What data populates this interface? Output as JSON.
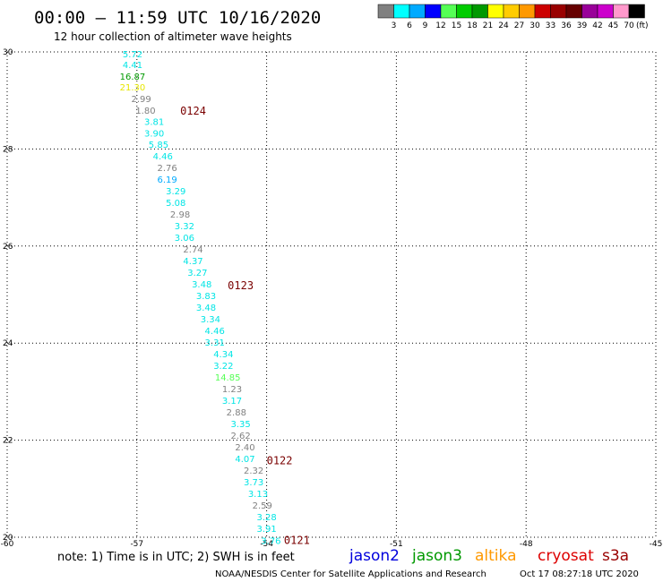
{
  "header": {
    "title": "00:00 – 11:59 UTC 10/16/2020",
    "subtitle": "12 hour collection of altimeter wave heights"
  },
  "colorbar": {
    "unit": "(ft)",
    "swatches": [
      {
        "color": "#808080",
        "label": "3"
      },
      {
        "color": "#00ffff",
        "label": "6"
      },
      {
        "color": "#00aaff",
        "label": "9"
      },
      {
        "color": "#0000ff",
        "label": "12"
      },
      {
        "color": "#55ff55",
        "label": "15"
      },
      {
        "color": "#00cc00",
        "label": "18"
      },
      {
        "color": "#009900",
        "label": "21"
      },
      {
        "color": "#ffff00",
        "label": "24"
      },
      {
        "color": "#ffcc00",
        "label": "27"
      },
      {
        "color": "#ff9900",
        "label": "30"
      },
      {
        "color": "#cc0000",
        "label": "33"
      },
      {
        "color": "#990000",
        "label": "36"
      },
      {
        "color": "#660000",
        "label": "39"
      },
      {
        "color": "#990099",
        "label": "42"
      },
      {
        "color": "#cc00cc",
        "label": "45"
      },
      {
        "color": "#ff99cc",
        "label": "70"
      },
      {
        "color": "#000000",
        "label": ""
      }
    ]
  },
  "chart_data": {
    "type": "scatter",
    "title": "00:00 – 11:59 UTC 10/16/2020",
    "subtitle": "12 hour collection of altimeter wave heights",
    "xlim": [
      -60,
      -45
    ],
    "ylim": [
      20,
      30
    ],
    "x_ticks": [
      "-60",
      "-57",
      "-54",
      "-51",
      "-48",
      "-45"
    ],
    "y_ticks": [
      "20",
      "22",
      "24",
      "26",
      "28",
      "30"
    ],
    "grid": true,
    "points": [
      {
        "lon": -57.1,
        "lat": 29.96,
        "swh": "5.72",
        "color": "#00e5e5"
      },
      {
        "lon": -57.1,
        "lat": 29.74,
        "swh": "4.41",
        "color": "#00e5e5"
      },
      {
        "lon": -57.1,
        "lat": 29.5,
        "swh": "16.87",
        "color": "#009900"
      },
      {
        "lon": -57.1,
        "lat": 29.28,
        "swh": "21.30",
        "color": "#e6e600"
      },
      {
        "lon": -56.9,
        "lat": 29.04,
        "swh": "2.99",
        "color": "#808080"
      },
      {
        "lon": -56.8,
        "lat": 28.8,
        "swh": "1.80",
        "color": "#808080"
      },
      {
        "lon": -56.6,
        "lat": 28.57,
        "swh": "3.81",
        "color": "#00e5e5"
      },
      {
        "lon": -56.6,
        "lat": 28.33,
        "swh": "3.90",
        "color": "#00e5e5"
      },
      {
        "lon": -56.5,
        "lat": 28.1,
        "swh": "5.85",
        "color": "#00e5e5"
      },
      {
        "lon": -56.4,
        "lat": 27.86,
        "swh": "4.46",
        "color": "#00e5e5"
      },
      {
        "lon": -56.3,
        "lat": 27.62,
        "swh": "2.76",
        "color": "#808080"
      },
      {
        "lon": -56.3,
        "lat": 27.38,
        "swh": "6.19",
        "color": "#00aaff"
      },
      {
        "lon": -56.1,
        "lat": 27.14,
        "swh": "3.29",
        "color": "#00e5e5"
      },
      {
        "lon": -56.1,
        "lat": 26.9,
        "swh": "5.08",
        "color": "#00e5e5"
      },
      {
        "lon": -56.0,
        "lat": 26.66,
        "swh": "2.98",
        "color": "#808080"
      },
      {
        "lon": -55.9,
        "lat": 26.42,
        "swh": "3.32",
        "color": "#00e5e5"
      },
      {
        "lon": -55.9,
        "lat": 26.18,
        "swh": "3.06",
        "color": "#00e5e5"
      },
      {
        "lon": -55.7,
        "lat": 25.94,
        "swh": "2.74",
        "color": "#808080"
      },
      {
        "lon": -55.7,
        "lat": 25.7,
        "swh": "4.37",
        "color": "#00e5e5"
      },
      {
        "lon": -55.6,
        "lat": 25.46,
        "swh": "3.27",
        "color": "#00e5e5"
      },
      {
        "lon": -55.5,
        "lat": 25.22,
        "swh": "3.48",
        "color": "#00e5e5"
      },
      {
        "lon": -55.4,
        "lat": 24.98,
        "swh": "3.83",
        "color": "#00e5e5"
      },
      {
        "lon": -55.4,
        "lat": 24.74,
        "swh": "3.48",
        "color": "#00e5e5"
      },
      {
        "lon": -55.3,
        "lat": 24.5,
        "swh": "3.34",
        "color": "#00e5e5"
      },
      {
        "lon": -55.2,
        "lat": 24.26,
        "swh": "4.46",
        "color": "#00e5e5"
      },
      {
        "lon": -55.2,
        "lat": 24.02,
        "swh": "3.31",
        "color": "#00e5e5"
      },
      {
        "lon": -55.0,
        "lat": 23.78,
        "swh": "4.34",
        "color": "#00e5e5"
      },
      {
        "lon": -55.0,
        "lat": 23.54,
        "swh": "3.22",
        "color": "#00e5e5"
      },
      {
        "lon": -54.9,
        "lat": 23.3,
        "swh": "14.85",
        "color": "#55ff55"
      },
      {
        "lon": -54.8,
        "lat": 23.06,
        "swh": "1.23",
        "color": "#808080"
      },
      {
        "lon": -54.8,
        "lat": 22.82,
        "swh": "3.17",
        "color": "#00e5e5"
      },
      {
        "lon": -54.7,
        "lat": 22.58,
        "swh": "2.88",
        "color": "#808080"
      },
      {
        "lon": -54.6,
        "lat": 22.34,
        "swh": "3.35",
        "color": "#00e5e5"
      },
      {
        "lon": -54.6,
        "lat": 22.1,
        "swh": "2.62",
        "color": "#808080"
      },
      {
        "lon": -54.5,
        "lat": 21.86,
        "swh": "2.40",
        "color": "#808080"
      },
      {
        "lon": -54.5,
        "lat": 21.62,
        "swh": "4.07",
        "color": "#00e5e5"
      },
      {
        "lon": -54.3,
        "lat": 21.38,
        "swh": "2.32",
        "color": "#808080"
      },
      {
        "lon": -54.3,
        "lat": 21.14,
        "swh": "3.73",
        "color": "#00e5e5"
      },
      {
        "lon": -54.2,
        "lat": 20.9,
        "swh": "3.13",
        "color": "#00e5e5"
      },
      {
        "lon": -54.1,
        "lat": 20.66,
        "swh": "2.59",
        "color": "#808080"
      },
      {
        "lon": -54.0,
        "lat": 20.42,
        "swh": "3.28",
        "color": "#00e5e5"
      },
      {
        "lon": -54.0,
        "lat": 20.18,
        "swh": "3.91",
        "color": "#00e5e5"
      },
      {
        "lon": -53.9,
        "lat": 19.94,
        "swh": "3.76",
        "color": "#00e5e5"
      }
    ],
    "pass_labels": [
      {
        "text": "0124",
        "lon": -56.0,
        "lat": 28.78
      },
      {
        "text": "0123",
        "lon": -54.9,
        "lat": 25.18
      },
      {
        "text": "0122",
        "lon": -54.0,
        "lat": 21.58
      },
      {
        "text": "0121",
        "lon": -53.6,
        "lat": 19.94
      }
    ]
  },
  "footer": {
    "note": "note:  1) Time is in UTC;  2) SWH is in feet",
    "satellites": [
      {
        "name": "jason2",
        "color": "#0000dd"
      },
      {
        "name": "jason3",
        "color": "#009900"
      },
      {
        "name": "altika",
        "color": "#ff9900"
      },
      {
        "name": "cryosat",
        "color": "#dd0000"
      },
      {
        "name": "s3a",
        "color": "#990000"
      }
    ],
    "credit": "NOAA/NESDIS Center for Satellite Applications and Research",
    "timestamp": "Oct 17 08:27:18 UTC 2020"
  }
}
